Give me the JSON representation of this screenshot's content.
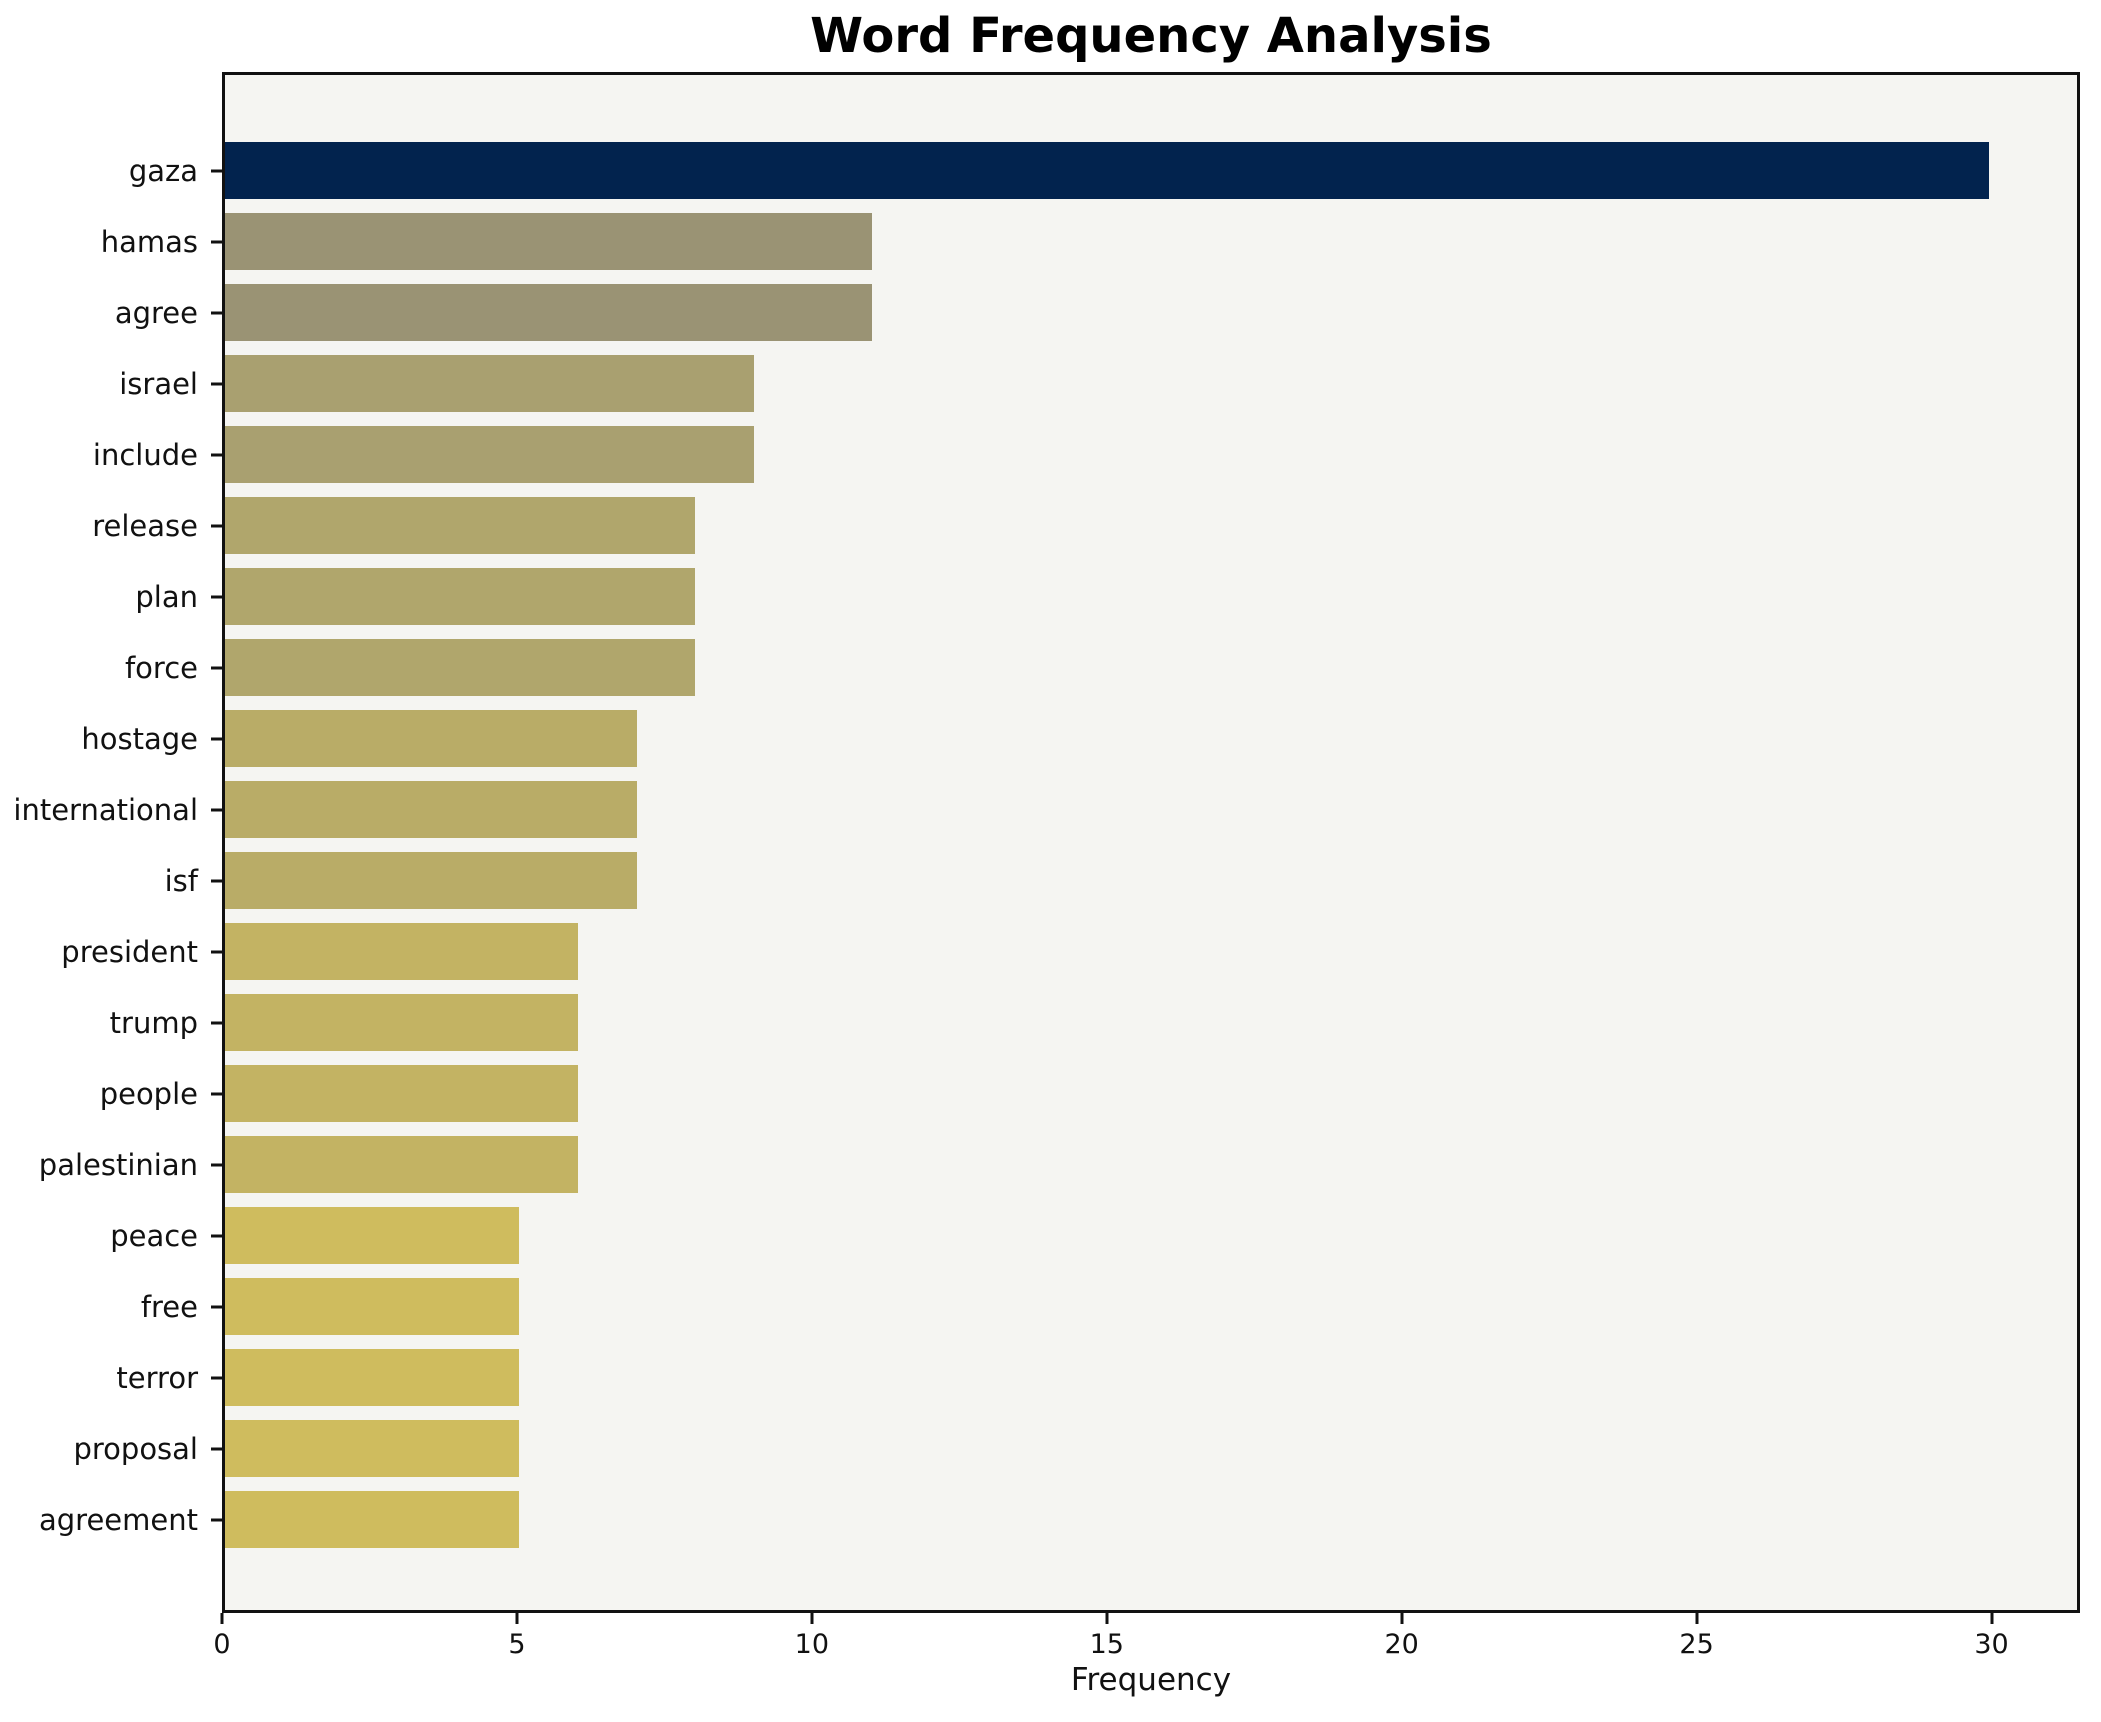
{
  "chart_data": {
    "type": "bar",
    "orientation": "horizontal",
    "title": "Word Frequency Analysis",
    "xlabel": "Frequency",
    "ylabel": "",
    "categories": [
      "gaza",
      "hamas",
      "agree",
      "israel",
      "include",
      "release",
      "plan",
      "force",
      "hostage",
      "international",
      "isf",
      "president",
      "trump",
      "people",
      "palestinian",
      "peace",
      "free",
      "terror",
      "proposal",
      "agreement"
    ],
    "values": [
      30,
      11,
      11,
      9,
      9,
      8,
      8,
      8,
      7,
      7,
      7,
      6,
      6,
      6,
      6,
      5,
      5,
      5,
      5,
      5
    ],
    "xlim": [
      0,
      31.5
    ],
    "xticks": [
      0,
      5,
      10,
      15,
      20,
      25,
      30
    ],
    "grid": false,
    "legend": false,
    "bar_colors": [
      "#02234e",
      "#9a9374",
      "#9a9374",
      "#a9a070",
      "#a9a070",
      "#b0a66c",
      "#b0a66c",
      "#b0a66c",
      "#b9ac67",
      "#b9ac67",
      "#b9ac67",
      "#c3b363",
      "#c3b363",
      "#c3b363",
      "#c3b363",
      "#cfbc5e",
      "#cfbc5e",
      "#cfbc5e",
      "#cfbc5e",
      "#cfbc5e"
    ],
    "colors": {
      "plot_background": "#f5f5f2",
      "figure_background": "#ffffff",
      "spine": "#111111",
      "text": "#111111"
    }
  }
}
